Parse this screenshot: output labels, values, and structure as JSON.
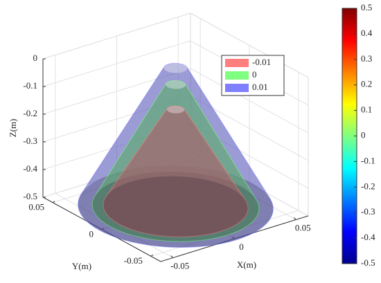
{
  "chart_data": {
    "type": "isosurface",
    "xlabel": "X(m)",
    "ylabel": "Y(m)",
    "zlabel": "Z(m)",
    "xlim": [
      -0.06,
      0.06
    ],
    "ylim": [
      -0.06,
      0.06
    ],
    "zlim": [
      -0.5,
      0
    ],
    "xticks": [
      -0.05,
      0,
      0.05
    ],
    "yticks": [
      -0.05,
      0,
      0.05
    ],
    "zticks": [
      -0.5,
      -0.4,
      -0.3,
      -0.2,
      -0.1,
      0
    ],
    "grid": true,
    "legend_loc": "upper right",
    "series": [
      {
        "name": "-0.01",
        "color": "#ff7f7f",
        "apex_z": -0.15,
        "base_radius": 0.046
      },
      {
        "name": "0",
        "color": "#7fff7f",
        "apex_z": -0.06,
        "base_radius": 0.053
      },
      {
        "name": "0.01",
        "color": "#7f7fff",
        "apex_z": 0,
        "base_radius": 0.062
      }
    ],
    "colormap": "jet",
    "clim": [
      -0.5,
      0.5
    ],
    "cticks": [
      -0.5,
      -0.4,
      -0.3,
      -0.2,
      -0.1,
      0,
      0.1,
      0.2,
      0.3,
      0.4,
      0.5
    ]
  }
}
